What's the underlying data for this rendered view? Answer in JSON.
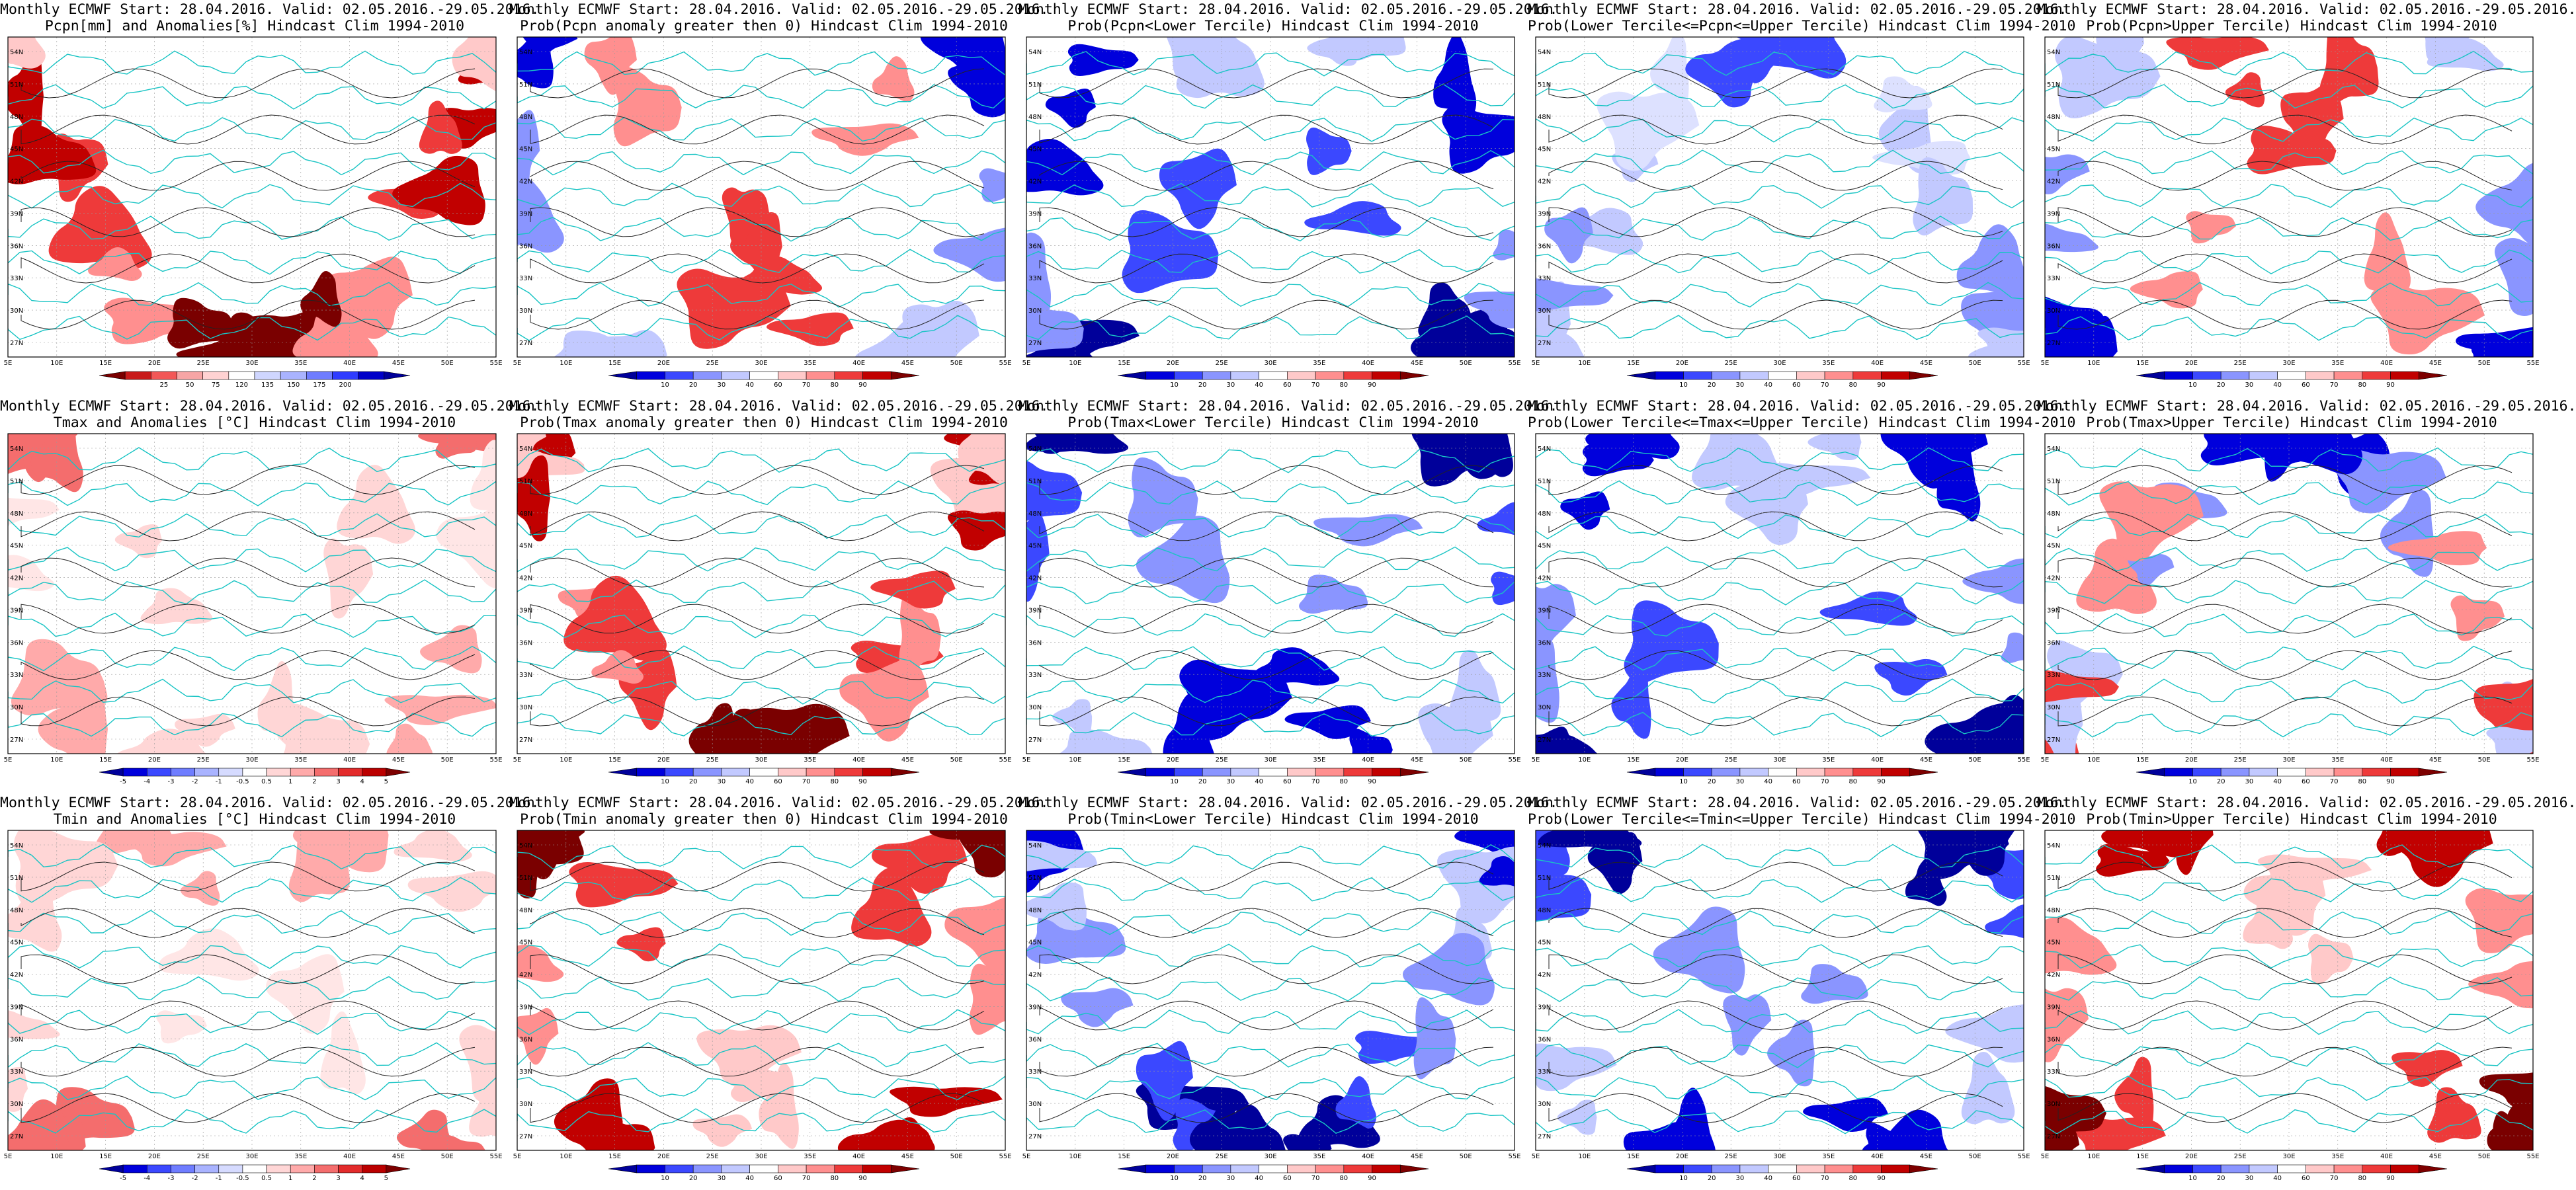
{
  "map": {
    "lat_ticks": [
      "54N",
      "51N",
      "48N",
      "45N",
      "42N",
      "39N",
      "36N",
      "33N",
      "30N",
      "27N"
    ],
    "lon_ticks": [
      "5E",
      "10E",
      "15E",
      "20E",
      "25E",
      "30E",
      "35E",
      "40E",
      "45E",
      "50E",
      "55E"
    ]
  },
  "colorbars": {
    "pcpn_anom": {
      "labels": [
        "25",
        "50",
        "75",
        "120",
        "135",
        "150",
        "175",
        "200"
      ],
      "colors": [
        "#7a0000",
        "#c81a1a",
        "#f25757",
        "#f7a5a5",
        "#ffd2d2",
        "#ffffff",
        "#cfd6ff",
        "#a9b3ff",
        "#6f7dff",
        "#2f3cff",
        "#0000c8",
        "#00009a"
      ]
    },
    "prob": {
      "labels": [
        "10",
        "20",
        "30",
        "40",
        "60",
        "70",
        "80",
        "90"
      ],
      "colors": [
        "#00009a",
        "#0000dc",
        "#3b48ff",
        "#8a95ff",
        "#c2c9ff",
        "#ffffff",
        "#ffc9c9",
        "#ff8f8f",
        "#ee3a3a",
        "#c10000",
        "#7d0000"
      ]
    },
    "temp_anom": {
      "labels": [
        "-5",
        "-4",
        "-3",
        "-2",
        "-1",
        "-0.5",
        "0.5",
        "1",
        "2",
        "3",
        "4",
        "5"
      ],
      "colors": [
        "#00009a",
        "#0000dc",
        "#3b48ff",
        "#6f7dff",
        "#a9b3ff",
        "#d6dbff",
        "#ffffff",
        "#ffd6d6",
        "#ffaaaa",
        "#f46d6d",
        "#e32b2b",
        "#bb0000",
        "#7d0000"
      ]
    }
  },
  "panels": [
    {
      "line1": "Monthly ECMWF Start: 28.04.2016. Valid: 02.05.2016.-29.05.2016.",
      "line2": "Pcpn[mm] and Anomalies[%] Hindcast Clim 1994-2010",
      "bar": "pcpn_anom",
      "palette": "red"
    },
    {
      "line1": "Monthly ECMWF Start: 28.04.2016. Valid: 02.05.2016.-29.05.2016.",
      "line2": "Prob(Pcpn anomaly greater then 0) Hindcast Clim 1994-2010",
      "bar": "prob",
      "palette": "blue-red"
    },
    {
      "line1": "Monthly ECMWF Start: 28.04.2016. Valid: 02.05.2016.-29.05.2016.",
      "line2": "Prob(Pcpn<Lower Tercile) Hindcast Clim 1994-2010",
      "bar": "prob",
      "palette": "blue"
    },
    {
      "line1": "Monthly ECMWF Start: 28.04.2016. Valid: 02.05.2016.-29.05.2016.",
      "line2": "Prob(Lower Tercile<=Pcpn<=Upper Tercile) Hindcast Clim 1994-2010",
      "bar": "prob",
      "palette": "light-blue"
    },
    {
      "line1": "Monthly ECMWF Start: 28.04.2016. Valid: 02.05.2016.-29.05.2016.",
      "line2": "Prob(Pcpn>Upper Tercile) Hindcast Clim 1994-2010",
      "bar": "prob",
      "palette": "blue-red"
    },
    {
      "line1": "Monthly ECMWF Start: 28.04.2016. Valid: 02.05.2016.-29.05.2016.",
      "line2": "Tmax and Anomalies [°C] Hindcast Clim 1994-2010",
      "bar": "temp_anom",
      "palette": "light-red"
    },
    {
      "line1": "Monthly ECMWF Start: 28.04.2016. Valid: 02.05.2016.-29.05.2016.",
      "line2": "Prob(Tmax anomaly greater then 0) Hindcast Clim 1994-2010",
      "bar": "prob",
      "palette": "red"
    },
    {
      "line1": "Monthly ECMWF Start: 28.04.2016. Valid: 02.05.2016.-29.05.2016.",
      "line2": "Prob(Tmax<Lower Tercile) Hindcast Clim 1994-2010",
      "bar": "prob",
      "palette": "blue"
    },
    {
      "line1": "Monthly ECMWF Start: 28.04.2016. Valid: 02.05.2016.-29.05.2016.",
      "line2": "Prob(Lower Tercile<=Tmax<=Upper Tercile) Hindcast Clim 1994-2010",
      "bar": "prob",
      "palette": "blue"
    },
    {
      "line1": "Monthly ECMWF Start: 28.04.2016. Valid: 02.05.2016.-29.05.2016.",
      "line2": "Prob(Tmax>Upper Tercile) Hindcast Clim 1994-2010",
      "bar": "prob",
      "palette": "blue-red"
    },
    {
      "line1": "Monthly ECMWF Start: 28.04.2016. Valid: 02.05.2016.-29.05.2016.",
      "line2": "Tmin and Anomalies [°C] Hindcast Clim 1994-2010",
      "bar": "temp_anom",
      "palette": "light-red"
    },
    {
      "line1": "Monthly ECMWF Start: 28.04.2016. Valid: 02.05.2016.-29.05.2016.",
      "line2": "Prob(Tmin anomaly greater then 0) Hindcast Clim 1994-2010",
      "bar": "prob",
      "palette": "red"
    },
    {
      "line1": "Monthly ECMWF Start: 28.04.2016. Valid: 02.05.2016.-29.05.2016.",
      "line2": "Prob(Tmin<Lower Tercile) Hindcast Clim 1994-2010",
      "bar": "prob",
      "palette": "blue"
    },
    {
      "line1": "Monthly ECMWF Start: 28.04.2016. Valid: 02.05.2016.-29.05.2016.",
      "line2": "Prob(Lower Tercile<=Tmin<=Upper Tercile) Hindcast Clim 1994-2010",
      "bar": "prob",
      "palette": "blue"
    },
    {
      "line1": "Monthly ECMWF Start: 28.04.2016. Valid: 02.05.2016.-29.05.2016.",
      "line2": "Prob(Tmin>Upper Tercile) Hindcast Clim 1994-2010",
      "bar": "prob",
      "palette": "red"
    }
  ]
}
